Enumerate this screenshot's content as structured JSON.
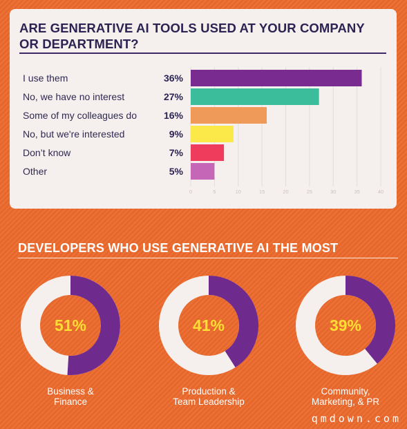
{
  "card": {
    "title": "ARE GENERATIVE AI TOOLS USED AT YOUR COMPANY OR DEPARTMENT?"
  },
  "chart_data": [
    {
      "type": "bar",
      "orientation": "horizontal",
      "title": "ARE GENERATIVE AI TOOLS USED AT YOUR COMPANY OR DEPARTMENT?",
      "categories": [
        "I use them",
        "No, we have no interest",
        "Some of my colleagues do",
        "No, but we're interested",
        "Don’t know",
        "Other"
      ],
      "values": [
        36,
        27,
        16,
        9,
        7,
        5
      ],
      "value_labels": [
        "36%",
        "27%",
        "16%",
        "9%",
        "7%",
        "5%"
      ],
      "colors": [
        "#7a2b8f",
        "#3bbd9b",
        "#f09a5a",
        "#fbe94a",
        "#f03c5c",
        "#c566b6"
      ],
      "xlim": [
        0,
        40
      ],
      "x_ticks": [
        0,
        5,
        10,
        15,
        20,
        25,
        30,
        35,
        40
      ],
      "grid": true,
      "legend": "none"
    },
    {
      "type": "pie",
      "style": "donut",
      "title": "DEVELOPERS WHO USE GENERATIVE AI THE MOST",
      "categories": [
        "Business & Finance",
        "Production & Team Leadership",
        "Community, Marketing, & PR"
      ],
      "values": [
        51,
        41,
        39
      ],
      "value_labels": [
        "51%",
        "41%",
        "39%"
      ],
      "label_lines": [
        [
          "Business &",
          "Finance"
        ],
        [
          "Production &",
          "Team Leadership"
        ],
        [
          "Community,",
          "Marketing, & PR"
        ]
      ],
      "fill_color": "#6f2a8e",
      "track_color": "#f5efed"
    }
  ],
  "section": {
    "title": "DEVELOPERS WHO USE GENERATIVE AI THE MOST"
  },
  "watermark": "qmdown.com"
}
